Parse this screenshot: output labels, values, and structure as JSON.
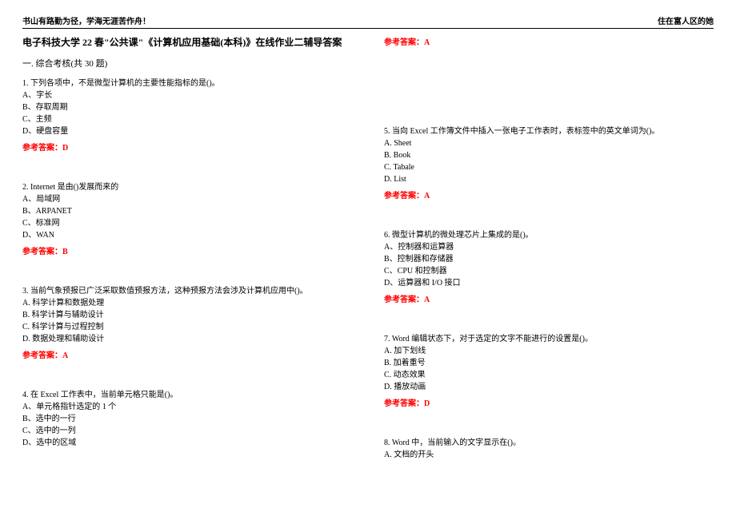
{
  "header": {
    "left": "书山有路勤为径，学海无涯苦作舟！",
    "right": "住在富人区的她"
  },
  "title": "电子科技大学 22 春\"公共课\"《计算机应用基础(本科)》在线作业二辅导答案",
  "section": "一. 综合考核(共 30 题)",
  "answer_label_prefix": "参考答案：",
  "left_questions": [
    {
      "stem": "1. 下列各项中，不是微型计算机的主要性能指标的是()。",
      "options": [
        "A、字长",
        "B、存取周期",
        "C、主频",
        "D、硬盘容量"
      ],
      "answer": "D"
    },
    {
      "stem": "2. Internet 是由()发展而来的",
      "options": [
        "A、局域网",
        "B、ARPANET",
        "C、标准网",
        "D、WAN"
      ],
      "answer": "B"
    },
    {
      "stem": "3. 当前气象预报已广泛采取数值预报方法，这种预报方法会涉及计算机应用中()。",
      "options": [
        "A. 科学计算和数据处理",
        "B. 科学计算与辅助设计",
        "C. 科学计算与过程控制",
        "D. 数据处理和辅助设计"
      ],
      "answer": "A"
    },
    {
      "stem": "4. 在 Excel 工作表中，当前单元格只能是()。",
      "options": [
        "A、单元格指针选定的 1 个",
        "B、选中的一行",
        "C、选中的一列",
        "D、选中的区域"
      ],
      "answer": ""
    }
  ],
  "right_questions": [
    {
      "pre_answer": "A",
      "stem": "5. 当向 Excel 工作簿文件中插入一张电子工作表时，表标签中的英文单词为()。",
      "options": [
        "A. Sheet",
        "B. Book",
        "C. Tabale",
        "D. List"
      ],
      "answer": "A"
    },
    {
      "stem": "6. 微型计算机的微处理芯片上集成的是()。",
      "options": [
        "A、控制器和运算器",
        "B、控制器和存储器",
        "C、CPU 和控制器",
        "D、运算器和 I/O 接口"
      ],
      "answer": "A"
    },
    {
      "stem": "7. Word 编辑状态下，对于选定的文字不能进行的设置是()。",
      "options": [
        "A. 加下划线",
        "B. 加着重号",
        "C. 动态效果",
        "D. 播放动画"
      ],
      "answer": "D"
    },
    {
      "stem": "8. Word 中，当前输入的文字显示在()。",
      "options": [
        "A. 文档的开头"
      ],
      "answer": ""
    }
  ]
}
